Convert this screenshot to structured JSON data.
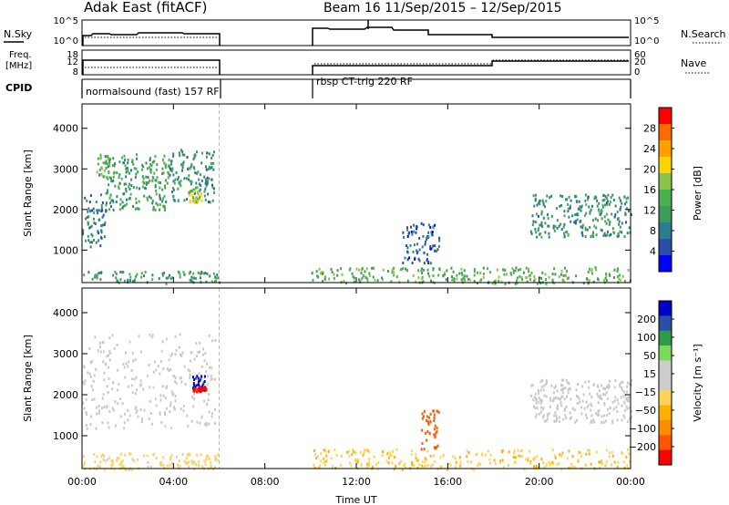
{
  "header": {
    "station": "Adak East (fitACF)",
    "beam_date": "Beam 16  11/Sep/2015 – 12/Sep/2015"
  },
  "top_panels": {
    "left_labels": {
      "nsky": "N.Sky",
      "freq_line1": "Freq.",
      "freq_line2": "[MHz]",
      "cpid": "CPID"
    },
    "right_labels": {
      "nsearch": "N.Search",
      "nave": "Nave"
    },
    "noise_ticks": {
      "high": "10^5",
      "low": "10^0"
    },
    "freq_ticks": {
      "high": "18",
      "mid": "12",
      "low": "8"
    },
    "nave_ticks": {
      "high": "60",
      "mid": "20",
      "low": "0"
    },
    "cpid_segments": [
      {
        "label": "normalsound (fast) 157 RF",
        "start_hr": 0,
        "end_hr": 6
      },
      {
        "label": "rbsp CT-trig 220 RF",
        "start_hr": 10,
        "end_hr": 24
      }
    ]
  },
  "colors": {
    "power_scale": [
      "#0000ff",
      "#2b4fa6",
      "#2e7d8c",
      "#3f9a5a",
      "#4caf50",
      "#8bc34a",
      "#ffd400",
      "#ffa000",
      "#ff6a00",
      "#ff0000"
    ],
    "velocity_scale": [
      "#ff0000",
      "#ff5500",
      "#ff8c00",
      "#ffb000",
      "#ffd35a",
      "#cccccc",
      "#cccccc",
      "#7ed957",
      "#2e9a4a",
      "#2b4fa6",
      "#0000cc"
    ],
    "groundscatter": "#c8c8c8"
  },
  "chart_data": [
    {
      "type": "heatmap",
      "title": "Power",
      "colorbar_label": "Power [dB]",
      "colorbar_ticks": [
        "28",
        "24",
        "20",
        "16",
        "12",
        "8",
        "4"
      ],
      "colorbar_range": [
        0,
        32
      ],
      "ylabel": "Slant Range [km]",
      "ylim": [
        200,
        4600
      ],
      "yticks": [
        "4000",
        "3000",
        "2000",
        "1000"
      ],
      "xlim_hr": [
        0,
        24
      ],
      "xticks": [
        "00:00",
        "04:00",
        "08:00",
        "12:00",
        "16:00",
        "20:00",
        "00:00"
      ],
      "xlabel": "Time UT",
      "dashed_line_hr": 6,
      "scatter_regions": [
        {
          "t0": 0.0,
          "t1": 1.0,
          "r0": 1100,
          "r1": 2400,
          "value": 8
        },
        {
          "t0": 0.6,
          "t1": 1.2,
          "r0": 2800,
          "r1": 3400,
          "value": 14
        },
        {
          "t0": 1.0,
          "t1": 3.8,
          "r0": 2000,
          "r1": 3400,
          "value": 12
        },
        {
          "t0": 3.8,
          "t1": 5.8,
          "r0": 2200,
          "r1": 3500,
          "value": 10
        },
        {
          "t0": 4.6,
          "t1": 5.2,
          "r0": 2200,
          "r1": 2500,
          "value": 18
        },
        {
          "t0": 14.0,
          "t1": 15.6,
          "r0": 700,
          "r1": 1700,
          "value": 6
        },
        {
          "t0": 19.6,
          "t1": 24.0,
          "r0": 1350,
          "r1": 2400,
          "value": 10
        },
        {
          "t0": 0.0,
          "t1": 6.0,
          "r0": 200,
          "r1": 500,
          "value": 12
        },
        {
          "t0": 10.0,
          "t1": 24.0,
          "r0": 200,
          "r1": 600,
          "value": 14
        }
      ]
    },
    {
      "type": "heatmap",
      "title": "Velocity",
      "colorbar_label": "Velocity [m s⁻¹]",
      "colorbar_ticks": [
        "200",
        "100",
        "50",
        "15",
        "−15",
        "−50",
        "−100",
        "−200"
      ],
      "colorbar_range": [
        -250,
        250
      ],
      "ylabel": "Slant Range [km]",
      "ylim": [
        200,
        4600
      ],
      "yticks": [
        "4000",
        "3000",
        "2000",
        "1000"
      ],
      "xlim_hr": [
        0,
        24
      ],
      "xticks": [
        "00:00",
        "04:00",
        "08:00",
        "12:00",
        "16:00",
        "20:00",
        "00:00"
      ],
      "xlabel": "Time UT",
      "dashed_line_hr": 6,
      "scatter_regions": [
        {
          "t0": 0.0,
          "t1": 5.8,
          "r0": 1200,
          "r1": 3500,
          "value": 0
        },
        {
          "t0": 4.8,
          "t1": 5.4,
          "r0": 2100,
          "r1": 2500,
          "value": 220
        },
        {
          "t0": 4.8,
          "t1": 5.4,
          "r0": 2100,
          "r1": 2200,
          "value": -220
        },
        {
          "t0": 14.8,
          "t1": 15.6,
          "r0": 700,
          "r1": 1700,
          "value": -180
        },
        {
          "t0": 19.6,
          "t1": 24.0,
          "r0": 1350,
          "r1": 2400,
          "value": 0
        },
        {
          "t0": 0.0,
          "t1": 6.0,
          "r0": 200,
          "r1": 600,
          "value": -40
        },
        {
          "t0": 10.0,
          "t1": 24.0,
          "r0": 200,
          "r1": 700,
          "value": -60
        }
      ]
    }
  ]
}
